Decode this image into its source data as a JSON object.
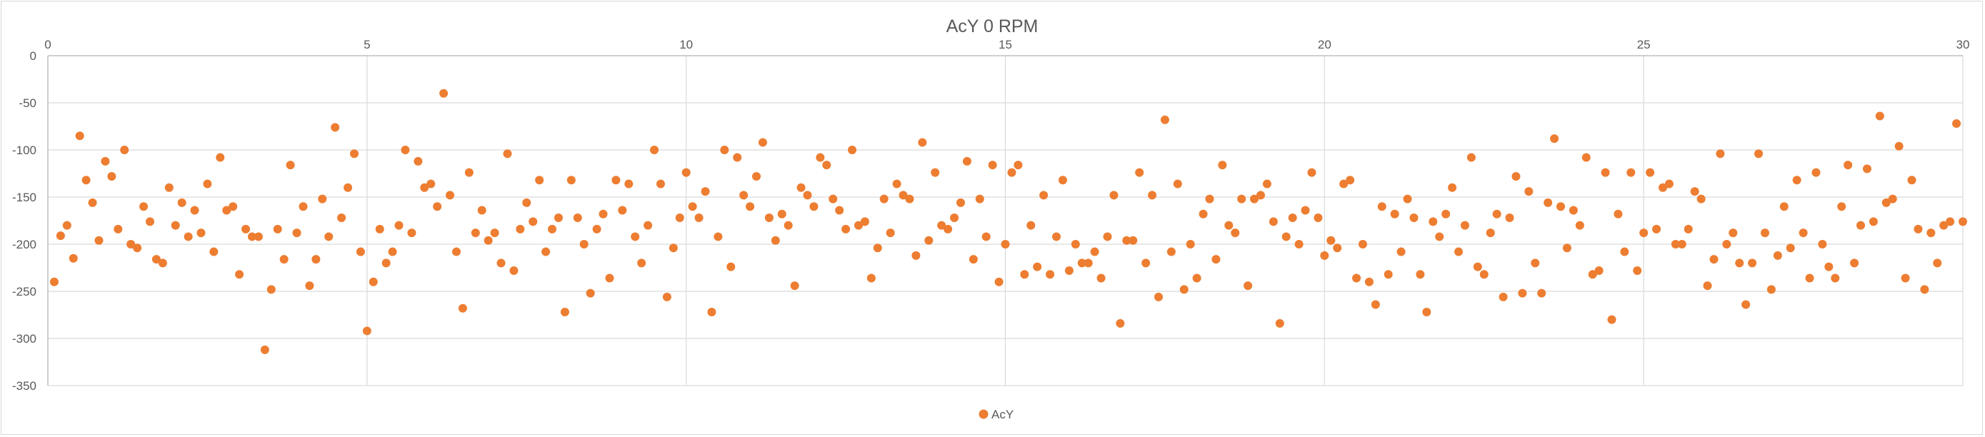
{
  "chart_data": {
    "type": "scatter",
    "title": "AcY 0 RPM",
    "xlabel": "",
    "ylabel": "",
    "xlim": [
      0,
      30
    ],
    "ylim": [
      -350,
      0
    ],
    "x_ticks": [
      0,
      5,
      10,
      15,
      20,
      25,
      30
    ],
    "y_ticks": [
      0,
      -50,
      -100,
      -150,
      -200,
      -250,
      -300,
      -350
    ],
    "grid": "horizontal",
    "legend": "bottom",
    "marker_color": "#ED7D31",
    "series": [
      {
        "name": "AcY",
        "points": [
          [
            0.1,
            -240
          ],
          [
            0.2,
            -191
          ],
          [
            0.3,
            -180
          ],
          [
            0.4,
            -215
          ],
          [
            0.5,
            -85
          ],
          [
            0.6,
            -132
          ],
          [
            0.7,
            -156
          ],
          [
            0.8,
            -196
          ],
          [
            0.9,
            -112
          ],
          [
            1.0,
            -128
          ],
          [
            1.1,
            -184
          ],
          [
            1.2,
            -100
          ],
          [
            1.3,
            -200
          ],
          [
            1.4,
            -204
          ],
          [
            1.5,
            -160
          ],
          [
            1.6,
            -176
          ],
          [
            1.7,
            -216
          ],
          [
            1.8,
            -220
          ],
          [
            1.9,
            -140
          ],
          [
            2.0,
            -180
          ],
          [
            2.1,
            -156
          ],
          [
            2.2,
            -192
          ],
          [
            2.3,
            -164
          ],
          [
            2.4,
            -188
          ],
          [
            2.5,
            -136
          ],
          [
            2.6,
            -208
          ],
          [
            2.7,
            -108
          ],
          [
            2.8,
            -164
          ],
          [
            2.9,
            -160
          ],
          [
            3.0,
            -232
          ],
          [
            3.1,
            -184
          ],
          [
            3.2,
            -192
          ],
          [
            3.3,
            -192
          ],
          [
            3.4,
            -312
          ],
          [
            3.5,
            -248
          ],
          [
            3.6,
            -184
          ],
          [
            3.7,
            -216
          ],
          [
            3.8,
            -116
          ],
          [
            3.9,
            -188
          ],
          [
            4.0,
            -160
          ],
          [
            4.1,
            -244
          ],
          [
            4.2,
            -216
          ],
          [
            4.3,
            -152
          ],
          [
            4.4,
            -192
          ],
          [
            4.5,
            -76
          ],
          [
            4.6,
            -172
          ],
          [
            4.7,
            -140
          ],
          [
            4.8,
            -104
          ],
          [
            4.9,
            -208
          ],
          [
            5.0,
            -292
          ],
          [
            5.1,
            -240
          ],
          [
            5.2,
            -184
          ],
          [
            5.3,
            -220
          ],
          [
            5.4,
            -208
          ],
          [
            5.5,
            -180
          ],
          [
            5.6,
            -100
          ],
          [
            5.7,
            -188
          ],
          [
            5.8,
            -112
          ],
          [
            5.9,
            -140
          ],
          [
            6.0,
            -136
          ],
          [
            6.1,
            -160
          ],
          [
            6.2,
            -40
          ],
          [
            6.3,
            -148
          ],
          [
            6.4,
            -208
          ],
          [
            6.5,
            -268
          ],
          [
            6.6,
            -124
          ],
          [
            6.7,
            -188
          ],
          [
            6.8,
            -164
          ],
          [
            6.9,
            -196
          ],
          [
            7.0,
            -188
          ],
          [
            7.1,
            -220
          ],
          [
            7.2,
            -104
          ],
          [
            7.3,
            -228
          ],
          [
            7.4,
            -184
          ],
          [
            7.5,
            -156
          ],
          [
            7.6,
            -176
          ],
          [
            7.7,
            -132
          ],
          [
            7.8,
            -208
          ],
          [
            7.9,
            -184
          ],
          [
            8.0,
            -172
          ],
          [
            8.1,
            -272
          ],
          [
            8.2,
            -132
          ],
          [
            8.3,
            -172
          ],
          [
            8.4,
            -200
          ],
          [
            8.5,
            -252
          ],
          [
            8.6,
            -184
          ],
          [
            8.7,
            -168
          ],
          [
            8.8,
            -236
          ],
          [
            8.9,
            -132
          ],
          [
            9.0,
            -164
          ],
          [
            9.1,
            -136
          ],
          [
            9.2,
            -192
          ],
          [
            9.3,
            -220
          ],
          [
            9.4,
            -180
          ],
          [
            9.5,
            -100
          ],
          [
            9.6,
            -136
          ],
          [
            9.7,
            -256
          ],
          [
            9.8,
            -204
          ],
          [
            9.9,
            -172
          ],
          [
            10.0,
            -124
          ],
          [
            10.1,
            -160
          ],
          [
            10.2,
            -172
          ],
          [
            10.3,
            -144
          ],
          [
            10.4,
            -272
          ],
          [
            10.5,
            -192
          ],
          [
            10.6,
            -100
          ],
          [
            10.7,
            -224
          ],
          [
            10.8,
            -108
          ],
          [
            10.9,
            -148
          ],
          [
            11.0,
            -160
          ],
          [
            11.1,
            -128
          ],
          [
            11.2,
            -92
          ],
          [
            11.3,
            -172
          ],
          [
            11.4,
            -196
          ],
          [
            11.5,
            -168
          ],
          [
            11.6,
            -180
          ],
          [
            11.7,
            -244
          ],
          [
            11.8,
            -140
          ],
          [
            11.9,
            -148
          ],
          [
            12.0,
            -160
          ],
          [
            12.1,
            -108
          ],
          [
            12.2,
            -116
          ],
          [
            12.3,
            -152
          ],
          [
            12.4,
            -164
          ],
          [
            12.5,
            -184
          ],
          [
            12.6,
            -100
          ],
          [
            12.7,
            -180
          ],
          [
            12.8,
            -176
          ],
          [
            12.9,
            -236
          ],
          [
            13.0,
            -204
          ],
          [
            13.1,
            -152
          ],
          [
            13.2,
            -188
          ],
          [
            13.3,
            -136
          ],
          [
            13.4,
            -148
          ],
          [
            13.5,
            -152
          ],
          [
            13.6,
            -212
          ],
          [
            13.7,
            -92
          ],
          [
            13.8,
            -196
          ],
          [
            13.9,
            -124
          ],
          [
            14.0,
            -180
          ],
          [
            14.1,
            -184
          ],
          [
            14.2,
            -172
          ],
          [
            14.3,
            -156
          ],
          [
            14.4,
            -112
          ],
          [
            14.5,
            -216
          ],
          [
            14.6,
            -152
          ],
          [
            14.7,
            -192
          ],
          [
            14.8,
            -116
          ],
          [
            14.9,
            -240
          ],
          [
            15.0,
            -200
          ],
          [
            15.1,
            -124
          ],
          [
            15.2,
            -116
          ],
          [
            15.3,
            -232
          ],
          [
            15.4,
            -180
          ],
          [
            15.5,
            -224
          ],
          [
            15.6,
            -148
          ],
          [
            15.7,
            -232
          ],
          [
            15.8,
            -192
          ],
          [
            15.9,
            -132
          ],
          [
            16.0,
            -228
          ],
          [
            16.1,
            -200
          ],
          [
            16.2,
            -220
          ],
          [
            16.3,
            -220
          ],
          [
            16.4,
            -208
          ],
          [
            16.5,
            -236
          ],
          [
            16.6,
            -192
          ],
          [
            16.7,
            -148
          ],
          [
            16.8,
            -284
          ],
          [
            16.9,
            -196
          ],
          [
            17.0,
            -196
          ],
          [
            17.1,
            -124
          ],
          [
            17.2,
            -220
          ],
          [
            17.3,
            -148
          ],
          [
            17.4,
            -256
          ],
          [
            17.5,
            -68
          ],
          [
            17.6,
            -208
          ],
          [
            17.7,
            -136
          ],
          [
            17.8,
            -248
          ],
          [
            17.9,
            -200
          ],
          [
            18.0,
            -236
          ],
          [
            18.1,
            -168
          ],
          [
            18.2,
            -152
          ],
          [
            18.3,
            -216
          ],
          [
            18.4,
            -116
          ],
          [
            18.5,
            -180
          ],
          [
            18.6,
            -188
          ],
          [
            18.7,
            -152
          ],
          [
            18.8,
            -244
          ],
          [
            18.9,
            -152
          ],
          [
            19.0,
            -148
          ],
          [
            19.1,
            -136
          ],
          [
            19.2,
            -176
          ],
          [
            19.3,
            -284
          ],
          [
            19.4,
            -192
          ],
          [
            19.5,
            -172
          ],
          [
            19.6,
            -200
          ],
          [
            19.7,
            -164
          ],
          [
            19.8,
            -124
          ],
          [
            19.9,
            -172
          ],
          [
            20.0,
            -212
          ],
          [
            20.1,
            -196
          ],
          [
            20.2,
            -204
          ],
          [
            20.3,
            -136
          ],
          [
            20.4,
            -132
          ],
          [
            20.5,
            -236
          ],
          [
            20.6,
            -200
          ],
          [
            20.7,
            -240
          ],
          [
            20.8,
            -264
          ],
          [
            20.9,
            -160
          ],
          [
            21.0,
            -232
          ],
          [
            21.1,
            -168
          ],
          [
            21.2,
            -208
          ],
          [
            21.3,
            -152
          ],
          [
            21.4,
            -172
          ],
          [
            21.5,
            -232
          ],
          [
            21.6,
            -272
          ],
          [
            21.7,
            -176
          ],
          [
            21.8,
            -192
          ],
          [
            21.9,
            -168
          ],
          [
            22.0,
            -140
          ],
          [
            22.1,
            -208
          ],
          [
            22.2,
            -180
          ],
          [
            22.3,
            -108
          ],
          [
            22.4,
            -224
          ],
          [
            22.5,
            -232
          ],
          [
            22.6,
            -188
          ],
          [
            22.7,
            -168
          ],
          [
            22.8,
            -256
          ],
          [
            22.9,
            -172
          ],
          [
            23.0,
            -128
          ],
          [
            23.1,
            -252
          ],
          [
            23.2,
            -144
          ],
          [
            23.3,
            -220
          ],
          [
            23.4,
            -252
          ],
          [
            23.5,
            -156
          ],
          [
            23.6,
            -88
          ],
          [
            23.7,
            -160
          ],
          [
            23.8,
            -204
          ],
          [
            23.9,
            -164
          ],
          [
            24.0,
            -180
          ],
          [
            24.1,
            -108
          ],
          [
            24.2,
            -232
          ],
          [
            24.3,
            -228
          ],
          [
            24.4,
            -124
          ],
          [
            24.5,
            -280
          ],
          [
            24.6,
            -168
          ],
          [
            24.7,
            -208
          ],
          [
            24.8,
            -124
          ],
          [
            24.9,
            -228
          ],
          [
            25.0,
            -188
          ],
          [
            25.1,
            -124
          ],
          [
            25.2,
            -184
          ],
          [
            25.3,
            -140
          ],
          [
            25.4,
            -136
          ],
          [
            25.5,
            -200
          ],
          [
            25.6,
            -200
          ],
          [
            25.7,
            -184
          ],
          [
            25.8,
            -144
          ],
          [
            25.9,
            -152
          ],
          [
            26.0,
            -244
          ],
          [
            26.1,
            -216
          ],
          [
            26.2,
            -104
          ],
          [
            26.3,
            -200
          ],
          [
            26.4,
            -188
          ],
          [
            26.5,
            -220
          ],
          [
            26.6,
            -264
          ],
          [
            26.7,
            -220
          ],
          [
            26.8,
            -104
          ],
          [
            26.9,
            -188
          ],
          [
            27.0,
            -248
          ],
          [
            27.1,
            -212
          ],
          [
            27.2,
            -160
          ],
          [
            27.3,
            -204
          ],
          [
            27.4,
            -132
          ],
          [
            27.5,
            -188
          ],
          [
            27.6,
            -236
          ],
          [
            27.7,
            -124
          ],
          [
            27.8,
            -200
          ],
          [
            27.9,
            -224
          ],
          [
            28.0,
            -236
          ],
          [
            28.1,
            -160
          ],
          [
            28.2,
            -116
          ],
          [
            28.3,
            -220
          ],
          [
            28.4,
            -180
          ],
          [
            28.5,
            -120
          ],
          [
            28.6,
            -176
          ],
          [
            28.7,
            -64
          ],
          [
            28.8,
            -156
          ],
          [
            28.9,
            -152
          ],
          [
            29.0,
            -96
          ],
          [
            29.1,
            -236
          ],
          [
            29.2,
            -132
          ],
          [
            29.3,
            -184
          ],
          [
            29.4,
            -248
          ],
          [
            29.5,
            -188
          ],
          [
            29.6,
            -220
          ],
          [
            29.7,
            -180
          ],
          [
            29.8,
            -176
          ],
          [
            29.9,
            -72
          ],
          [
            30.0,
            -176
          ]
        ]
      }
    ]
  }
}
